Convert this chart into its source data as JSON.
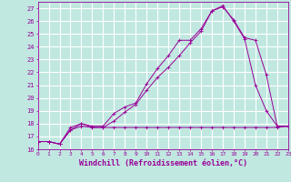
{
  "background_color": "#c0e8e0",
  "grid_color": "#ffffff",
  "line_color": "#990099",
  "xlabel": "Windchill (Refroidissement éolien,°C)",
  "xlabel_fontsize": 6,
  "ylabel_values": [
    16,
    17,
    18,
    19,
    20,
    21,
    22,
    23,
    24,
    25,
    26,
    27
  ],
  "xmin": 0,
  "xmax": 23,
  "ymin": 16,
  "ymax": 27.5,
  "series1_x": [
    0,
    1,
    2,
    3,
    4,
    5,
    6,
    7,
    8,
    9,
    10,
    11,
    12,
    13,
    14,
    15,
    16,
    17,
    18,
    19,
    20,
    21,
    22,
    23
  ],
  "series1_y": [
    16.6,
    16.6,
    16.4,
    17.7,
    18.0,
    17.8,
    17.8,
    18.8,
    19.3,
    19.6,
    21.1,
    22.3,
    23.3,
    24.5,
    24.5,
    25.4,
    26.8,
    27.2,
    26.0,
    24.6,
    21.0,
    19.0,
    17.8,
    17.8
  ],
  "series2_x": [
    0,
    1,
    2,
    3,
    4,
    5,
    6,
    7,
    8,
    9,
    10,
    11,
    12,
    13,
    14,
    15,
    16,
    17,
    18,
    19,
    20,
    21,
    22,
    23
  ],
  "series2_y": [
    16.6,
    16.6,
    16.4,
    17.5,
    18.0,
    17.7,
    17.7,
    18.2,
    18.9,
    19.5,
    20.6,
    21.6,
    22.4,
    23.3,
    24.3,
    25.2,
    26.8,
    27.1,
    26.1,
    24.7,
    24.5,
    21.8,
    17.8,
    17.8
  ],
  "series3_x": [
    0,
    1,
    2,
    3,
    4,
    5,
    6,
    7,
    8,
    9,
    10,
    11,
    12,
    13,
    14,
    15,
    16,
    17,
    18,
    19,
    20,
    21,
    22,
    23
  ],
  "series3_y": [
    16.6,
    16.6,
    16.4,
    17.5,
    17.8,
    17.7,
    17.7,
    17.7,
    17.7,
    17.7,
    17.7,
    17.7,
    17.7,
    17.7,
    17.7,
    17.7,
    17.7,
    17.7,
    17.7,
    17.7,
    17.7,
    17.7,
    17.7,
    17.8
  ]
}
